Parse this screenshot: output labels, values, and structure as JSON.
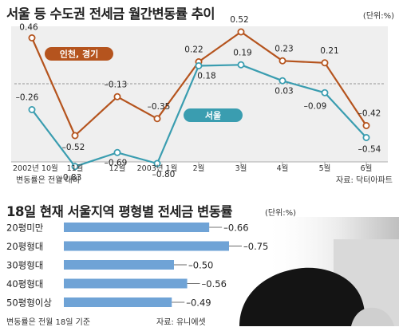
{
  "chart_data": [
    {
      "type": "line",
      "title": "서울 등 수도권 전세금 월간변동률 추이",
      "unit": "(단위:%)",
      "categories": [
        "2002년 10월",
        "11월",
        "12월",
        "2003년 1월",
        "2월",
        "3월",
        "4월",
        "5월",
        "6월"
      ],
      "series": [
        {
          "name": "인천, 경기",
          "color": "#b5541e",
          "values": [
            0.46,
            -0.52,
            -0.13,
            -0.35,
            0.22,
            0.52,
            0.23,
            0.21,
            -0.42
          ],
          "labels": [
            "0.46",
            "–0.52",
            "–0.13",
            "–0.35",
            "0.22",
            "0.52",
            "0.23",
            "0.21",
            "–0.42"
          ]
        },
        {
          "name": "서울",
          "color": "#3a9db0",
          "values": [
            -0.26,
            -0.83,
            -0.69,
            -0.8,
            0.18,
            0.19,
            0.03,
            -0.09,
            -0.54
          ],
          "labels": [
            "–0.26",
            "–0.83",
            "–0.69",
            "–0.80",
            "0.18",
            "0.19",
            "0.03",
            "–0.09",
            "–0.54"
          ]
        }
      ],
      "ylim": [
        -1.0,
        0.7
      ],
      "baseline": 0,
      "note": "변동률은 전월 대비",
      "source": "자료: 닥터아파트"
    },
    {
      "type": "bar",
      "orientation": "horizontal",
      "title": "18일 현재 서울지역 평형별 전세금 변동률",
      "unit": "(단위:%)",
      "categories": [
        "20평미만",
        "20평형대",
        "30평형대",
        "40평형대",
        "50평형이상"
      ],
      "values": [
        -0.66,
        -0.75,
        -0.5,
        -0.56,
        -0.49
      ],
      "labels": [
        "–0.66",
        "–0.75",
        "–0.50",
        "–0.56",
        "–0.49"
      ],
      "color": "#6fa3d6",
      "xlim": [
        0,
        -0.8
      ],
      "note": "변동률은 전월 18일 기준",
      "source": "자료: 유니에셋"
    }
  ]
}
